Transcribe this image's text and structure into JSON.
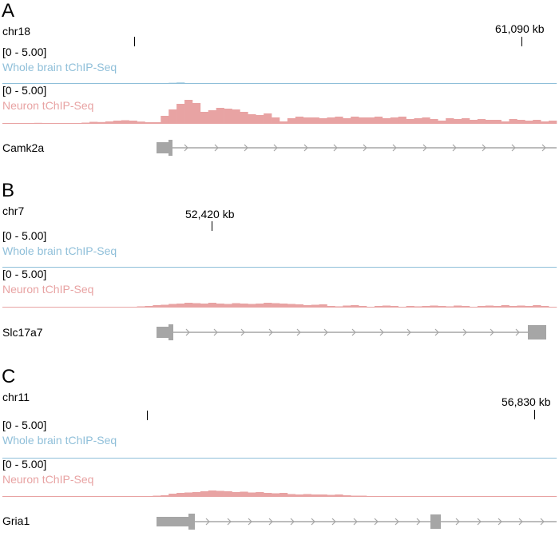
{
  "colors": {
    "whole_brain": "#8fbfd9",
    "neuron": "#e8a3a3",
    "gene": "#a6a6a6"
  },
  "panels": [
    {
      "letter": "A",
      "chrom": "chr18",
      "coord_label": "61,090 kb",
      "range_top": "[0 - 5.00]",
      "track1_label": "Whole brain tChIP-Seq",
      "range_bottom": "[0 - 5.00]",
      "track2_label": "Neuron tChIP-Seq",
      "gene": "Camk2a",
      "whole_brain_values": [
        0.02,
        0.02,
        0.05,
        0.03,
        0.02,
        0.02,
        0.05,
        0.03,
        0.02,
        0.02,
        0.02,
        0.02,
        0.03,
        0.02,
        0.02,
        0.02,
        0.02,
        0.02,
        0.02,
        0.02,
        0.02,
        0.22,
        0.28,
        0.18,
        0.14,
        0.18,
        0.12,
        0.06,
        0.08,
        0.1,
        0.08,
        0.06,
        0.05,
        0.08,
        0.05,
        0.06,
        0.04,
        0.08,
        0.05,
        0.05,
        0.08,
        0.12,
        0.09,
        0.06,
        0.05,
        0.06,
        0.05,
        0.09,
        0.06,
        0.05,
        0.05,
        0.06,
        0.05,
        0.06,
        0.08,
        0.05,
        0.04,
        0.05,
        0.05,
        0.05,
        0.04,
        0.04,
        0.06,
        0.05,
        0.04,
        0.1,
        0.05,
        0.04,
        0.05,
        0.04
      ],
      "neuron_values": [
        0.05,
        0.08,
        0.06,
        0.05,
        0.12,
        0.06,
        0.05,
        0.08,
        0.05,
        0.06,
        0.15,
        0.25,
        0.22,
        0.3,
        0.4,
        0.45,
        0.4,
        0.28,
        0.2,
        0.2,
        1.0,
        1.8,
        2.5,
        3.0,
        2.6,
        1.5,
        1.7,
        2.0,
        1.9,
        1.8,
        1.5,
        1.2,
        1.1,
        1.3,
        0.8,
        0.3,
        0.7,
        0.9,
        0.8,
        0.8,
        0.7,
        0.8,
        0.9,
        0.7,
        0.9,
        0.8,
        0.8,
        0.9,
        0.7,
        0.8,
        0.9,
        0.6,
        0.7,
        0.8,
        0.6,
        0.4,
        0.7,
        0.6,
        0.7,
        0.5,
        0.6,
        0.5,
        0.5,
        0.3,
        0.6,
        0.5,
        0.4,
        0.5,
        0.3,
        0.4
      ]
    },
    {
      "letter": "B",
      "chrom": "chr7",
      "coord_label": "52,420 kb",
      "range_top": "[0 - 5.00]",
      "track1_label": "Whole brain tChIP-Seq",
      "range_bottom": "[0 - 5.00]",
      "track2_label": "Neuron tChIP-Seq",
      "gene": "Slc17a7",
      "whole_brain_values": [
        0.02,
        0.03,
        0.02,
        0.02,
        0.1,
        0.12,
        0.04,
        0.02,
        0.02,
        0.02,
        0.02,
        0.02,
        0.02,
        0.02,
        0.02,
        0.02,
        0.02,
        0.02,
        0.02,
        0.02,
        0.02,
        0.08,
        0.1,
        0.12,
        0.06,
        0.05,
        0.04,
        0.03,
        0.04,
        0.05,
        0.04,
        0.05,
        0.06,
        0.04,
        0.03,
        0.05,
        0.04,
        0.03,
        0.03,
        0.04,
        0.03,
        0.03,
        0.04,
        0.03,
        0.03,
        0.04,
        0.03,
        0.03,
        0.03,
        0.03,
        0.03,
        0.03,
        0.03,
        0.04,
        0.03,
        0.03,
        0.03,
        0.03,
        0.03,
        0.03,
        0.03,
        0.03,
        0.03,
        0.03,
        0.03,
        0.03,
        0.03,
        0.03,
        0.03,
        0.03
      ],
      "neuron_values": [
        0.02,
        0.02,
        0.02,
        0.02,
        0.02,
        0.02,
        0.02,
        0.02,
        0.02,
        0.02,
        0.02,
        0.02,
        0.05,
        0.04,
        0.03,
        0.04,
        0.1,
        0.15,
        0.2,
        0.3,
        0.35,
        0.45,
        0.5,
        0.6,
        0.55,
        0.5,
        0.6,
        0.5,
        0.45,
        0.55,
        0.5,
        0.45,
        0.5,
        0.6,
        0.55,
        0.5,
        0.45,
        0.4,
        0.3,
        0.35,
        0.4,
        0.2,
        0.15,
        0.25,
        0.3,
        0.2,
        0.1,
        0.2,
        0.25,
        0.2,
        0.1,
        0.2,
        0.15,
        0.2,
        0.25,
        0.2,
        0.15,
        0.25,
        0.2,
        0.1,
        0.2,
        0.25,
        0.2,
        0.3,
        0.2,
        0.25,
        0.2,
        0.3,
        0.2,
        0.1
      ]
    },
    {
      "letter": "C",
      "chrom": "chr11",
      "coord_label": "56,830 kb",
      "range_top": "[0 - 5.00]",
      "track1_label": "Whole brain tChIP-Seq",
      "range_bottom": "[0 - 5.00]",
      "track2_label": "Neuron tChIP-Seq",
      "gene": "Gria1",
      "whole_brain_values": [
        0.02,
        0.02,
        0.02,
        0.02,
        0.02,
        0.02,
        0.02,
        0.02,
        0.02,
        0.02,
        0.02,
        0.02,
        0.02,
        0.02,
        0.02,
        0.02,
        0.02,
        0.02,
        0.02,
        0.03,
        0.03,
        0.06,
        0.08,
        0.05,
        0.1,
        0.12,
        0.08,
        0.1,
        0.12,
        0.1,
        0.08,
        0.1,
        0.1,
        0.12,
        0.1,
        0.14,
        0.1,
        0.12,
        0.1,
        0.08,
        0.07,
        0.05,
        0.06,
        0.05,
        0.06,
        0.04,
        0.04,
        0.03,
        0.04,
        0.03,
        0.03,
        0.03,
        0.03,
        0.03,
        0.03,
        0.03,
        0.04,
        0.03,
        0.03,
        0.03,
        0.03,
        0.03,
        0.04,
        0.03,
        0.03,
        0.03,
        0.03,
        0.03,
        0.03,
        0.03
      ],
      "neuron_values": [
        0.02,
        0.02,
        0.02,
        0.02,
        0.02,
        0.02,
        0.02,
        0.02,
        0.02,
        0.02,
        0.02,
        0.02,
        0.05,
        0.06,
        0.05,
        0.05,
        0.08,
        0.08,
        0.1,
        0.15,
        0.2,
        0.4,
        0.5,
        0.55,
        0.6,
        0.7,
        0.8,
        0.75,
        0.7,
        0.6,
        0.65,
        0.55,
        0.6,
        0.5,
        0.45,
        0.5,
        0.35,
        0.3,
        0.35,
        0.3,
        0.3,
        0.25,
        0.3,
        0.2,
        0.15,
        0.15,
        0.1,
        0.1,
        0.08,
        0.06,
        0.05,
        0.05,
        0.06,
        0.04,
        0.04,
        0.04,
        0.04,
        0.05,
        0.04,
        0.04,
        0.04,
        0.04,
        0.04,
        0.04,
        0.04,
        0.04,
        0.04,
        0.04,
        0.04,
        0.04
      ]
    }
  ]
}
